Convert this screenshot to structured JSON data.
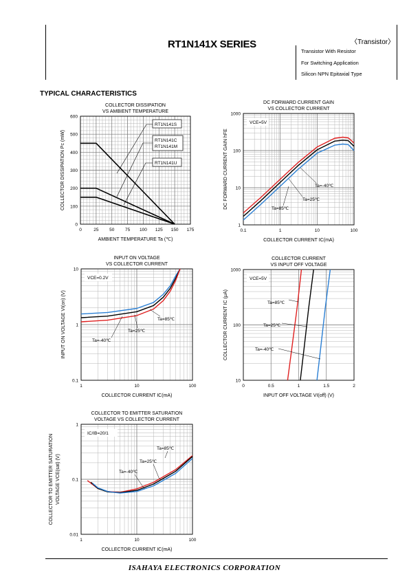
{
  "header": {
    "series": "RT1N141X SERIES",
    "category": "〈Transistor〉",
    "lines": [
      "Transistor With Resistor",
      "For Switching Application",
      "Silicon NPN Epitaxial Type"
    ]
  },
  "section_title": "TYPICAL CHARACTERISTICS",
  "footer": "ISAHAYA  ELECTRONICS  CORPORATION",
  "chart_data": [
    {
      "type": "line",
      "title": "COLLECTOR DISSIPATION VS AMBIENT TEMPERATURE",
      "title_lines": [
        "COLLECTOR DISSIPATION",
        "VS AMBIENT TEMPERATURE"
      ],
      "xlabel": "AMBIENT TEMPERATURE Ta (℃)",
      "ylabel": "COLLECTOR DISSIPATION Pc (mW)",
      "xlim": [
        0,
        175
      ],
      "ylim": [
        0,
        600
      ],
      "xticks": [
        0,
        25,
        50,
        75,
        100,
        125,
        150,
        175
      ],
      "yticks": [
        0,
        100,
        200,
        300,
        400,
        500,
        600
      ],
      "grid": true,
      "series": [
        {
          "name": "RT1N141S",
          "x": [
            0,
            25,
            150
          ],
          "y": [
            450,
            450,
            0
          ]
        },
        {
          "name": "RT1N141C / RT1N141M",
          "x": [
            0,
            25,
            150
          ],
          "y": [
            200,
            200,
            0
          ]
        },
        {
          "name": "RT1N141U",
          "x": [
            0,
            25,
            150
          ],
          "y": [
            150,
            150,
            0
          ]
        }
      ],
      "labels": [
        {
          "text": "RT1N141S"
        },
        {
          "text": "RT1N141C"
        },
        {
          "text": "RT1N141M"
        },
        {
          "text": "RT1N141U"
        }
      ]
    },
    {
      "type": "line",
      "title": "DC FORWARD CURRENT GAIN VS COLLECTOR CURRENT",
      "title_lines": [
        "DC FORWARD CURRENT GAIN",
        "VS COLLECTOR CURRENT"
      ],
      "xlabel": "COLLECTOR CURRENT  IC(mA)",
      "ylabel": "DC FORWARD CURRENT GAIN hFE",
      "xscale": "log",
      "yscale": "log",
      "xlim": [
        0.1,
        100
      ],
      "ylim": [
        1,
        1000
      ],
      "xticks": [
        0.1,
        1,
        10,
        100
      ],
      "yticks": [
        1,
        10,
        100,
        1000
      ],
      "condition": "VCE=5V",
      "grid": true,
      "series": [
        {
          "name": "Ta=85℃",
          "color": "#e02020",
          "x": [
            0.1,
            0.3,
            1,
            3,
            10,
            30,
            50,
            70,
            100
          ],
          "y": [
            2.1,
            5.5,
            17,
            47,
            125,
            215,
            230,
            220,
            160
          ]
        },
        {
          "name": "Ta=25℃",
          "color": "#000000",
          "x": [
            0.1,
            0.3,
            1,
            3,
            10,
            30,
            50,
            70,
            100
          ],
          "y": [
            1.7,
            4.5,
            14,
            39,
            105,
            180,
            190,
            185,
            130
          ]
        },
        {
          "name": "Ta=-40℃",
          "color": "#2a7fd4",
          "x": [
            0.1,
            0.3,
            1,
            3,
            10,
            30,
            50,
            70,
            100
          ],
          "y": [
            1.35,
            3.6,
            11,
            31,
            85,
            140,
            150,
            145,
            100
          ]
        }
      ]
    },
    {
      "type": "line",
      "title": "INPUT ON VOLTAGE VS COLLECTOR CURRENT",
      "title_lines": [
        "INPUT ON VOLTAGE",
        "VS COLLECTOR CURRENT"
      ],
      "xlabel": "COLLECTOR CURRENT  IC(mA)",
      "ylabel": "INPUT ON VOLTAGE VI(on) (V)",
      "xscale": "log",
      "yscale": "log",
      "xlim": [
        1,
        100
      ],
      "ylim": [
        0.1,
        10
      ],
      "xticks": [
        1,
        10,
        100
      ],
      "yticks": [
        0.1,
        1,
        10
      ],
      "condition": "VCE=0.2V",
      "grid": true,
      "series": [
        {
          "name": "Ta=-40℃",
          "color": "#2a7fd4",
          "x": [
            1,
            3,
            10,
            20,
            30,
            40,
            50,
            60
          ],
          "y": [
            1.55,
            1.65,
            1.95,
            2.5,
            3.5,
            5.0,
            7.5,
            10
          ]
        },
        {
          "name": "Ta=25℃",
          "color": "#000000",
          "x": [
            1,
            3,
            10,
            20,
            30,
            40,
            50,
            60
          ],
          "y": [
            1.33,
            1.42,
            1.7,
            2.2,
            3.1,
            4.5,
            6.8,
            10
          ]
        },
        {
          "name": "Ta=85℃",
          "color": "#e02020",
          "x": [
            1,
            3,
            10,
            20,
            30,
            40,
            50,
            60
          ],
          "y": [
            1.12,
            1.2,
            1.45,
            1.9,
            2.7,
            4.0,
            6.2,
            10
          ]
        }
      ]
    },
    {
      "type": "line",
      "title": "COLLECTOR CURRENT VS INPUT OFF VOLTAGE",
      "title_lines": [
        "COLLECTOR CURRENT",
        "VS INPUT OFF VOLTAGE"
      ],
      "xlabel": "INPUT OFF VOLTAGE VI(off) (V)",
      "ylabel": "COLLECTOR CURRENT IC (μA)",
      "yscale": "log",
      "xlim": [
        0,
        2
      ],
      "ylim": [
        10,
        1000
      ],
      "xticks": [
        0,
        0.5,
        1,
        1.5,
        2
      ],
      "yticks": [
        10,
        100,
        1000
      ],
      "condition": "VCE=5V",
      "grid": true,
      "series": [
        {
          "name": "Ta=85℃",
          "color": "#e02020",
          "x": [
            0.8,
            0.88,
            0.97,
            1.05
          ],
          "y": [
            10,
            40,
            200,
            1000
          ]
        },
        {
          "name": "Ta=25℃",
          "color": "#000000",
          "x": [
            1.03,
            1.1,
            1.18,
            1.27
          ],
          "y": [
            10,
            40,
            200,
            1000
          ]
        },
        {
          "name": "Ta=-40℃",
          "color": "#2a7fd4",
          "x": [
            1.33,
            1.4,
            1.48,
            1.57
          ],
          "y": [
            10,
            40,
            200,
            1000
          ]
        }
      ]
    },
    {
      "type": "line",
      "title": "COLLECTOR TO EMITTER SATURATION VOLTAGE VS COLLECTOR CURRENT",
      "title_lines": [
        "COLLECTOR TO EMITTER SATURATION",
        "VOLTAGE VS COLLECTOR CURRENT"
      ],
      "xlabel": "COLLECTOR CURRENT  IC(mA)",
      "ylabel_lines": [
        "COLLECTOR TO EMITTER SATURATION",
        "VOLTAGE VCE(sat) (V)"
      ],
      "xscale": "log",
      "yscale": "log",
      "xlim": [
        1,
        100
      ],
      "ylim": [
        0.01,
        1
      ],
      "xticks": [
        1,
        10,
        100
      ],
      "yticks": [
        0.01,
        0.1,
        1
      ],
      "condition": "IC/IB=20/1",
      "grid": true,
      "series": [
        {
          "name": "Ta=85℃",
          "color": "#e02020",
          "x": [
            1.3,
            2,
            3,
            5,
            10,
            20,
            50,
            100
          ],
          "y": [
            0.095,
            0.068,
            0.06,
            0.058,
            0.067,
            0.088,
            0.15,
            0.27
          ]
        },
        {
          "name": "Ta=25℃",
          "color": "#000000",
          "x": [
            1.5,
            2,
            3,
            5,
            10,
            20,
            50,
            100
          ],
          "y": [
            0.088,
            0.068,
            0.059,
            0.057,
            0.063,
            0.082,
            0.14,
            0.26
          ]
        },
        {
          "name": "Ta=-40℃",
          "color": "#2a7fd4",
          "x": [
            1.6,
            2,
            3,
            5,
            10,
            20,
            50,
            100
          ],
          "y": [
            0.085,
            0.07,
            0.06,
            0.056,
            0.06,
            0.076,
            0.128,
            0.24
          ]
        }
      ]
    }
  ]
}
